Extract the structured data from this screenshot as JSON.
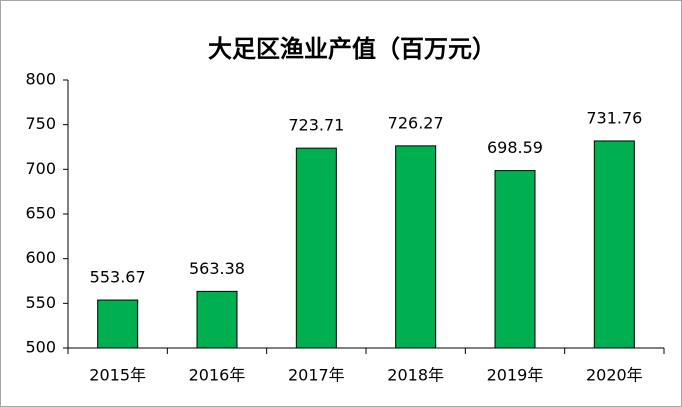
{
  "chart_data": {
    "type": "bar",
    "title": "大足区渔业产值（百万元）",
    "categories": [
      "2015年",
      "2016年",
      "2017年",
      "2018年",
      "2019年",
      "2020年"
    ],
    "values": [
      553.67,
      563.38,
      723.71,
      726.27,
      698.59,
      731.76
    ],
    "color": "#00b050",
    "ylim": [
      500,
      800
    ],
    "yticks": [
      500,
      550,
      600,
      650,
      700,
      750,
      800
    ],
    "grid": false
  }
}
